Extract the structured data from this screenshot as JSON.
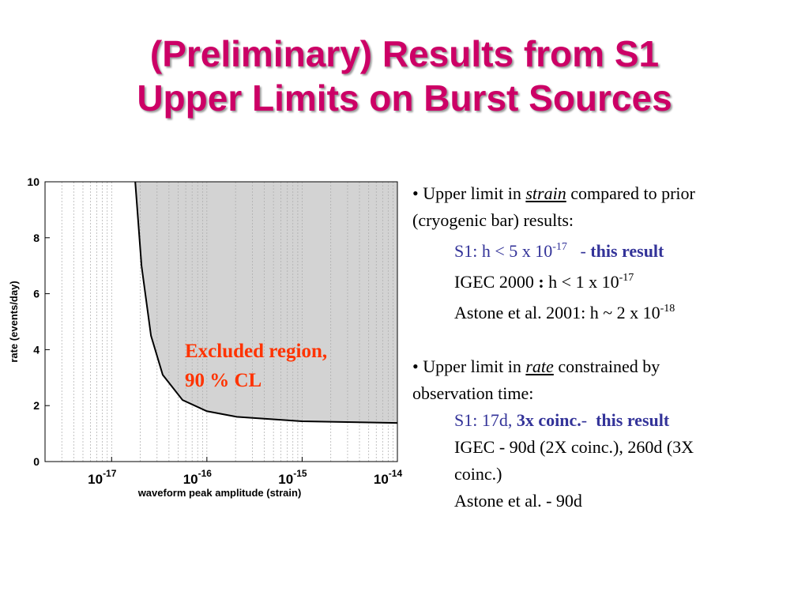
{
  "title_lines": [
    "(Preliminary) Results from S1",
    "Upper Limits on Burst Sources"
  ],
  "chart_data": {
    "type": "area-line",
    "x": [
      1.77e-17,
      2.06e-17,
      2.59e-17,
      3.44e-17,
      5.55e-17,
      1e-16,
      2.06e-16,
      1e-15,
      1e-14
    ],
    "values": [
      10,
      7.0,
      4.5,
      3.1,
      2.2,
      1.8,
      1.6,
      1.44,
      1.38
    ],
    "color": "#000000",
    "fill": "#d3d3d3",
    "x_label": "waveform peak amplitude (strain)",
    "y_label": "rate (events/day)",
    "x_log": true,
    "xlim": [
      2e-18,
      1e-14
    ],
    "ylim": [
      0,
      10
    ],
    "xticks": [
      {
        "value": 1e-17,
        "label": "10",
        "exponent": "-17"
      },
      {
        "value": 1e-16,
        "label": "10",
        "exponent": "-16"
      },
      {
        "value": 1e-15,
        "label": "10",
        "exponent": "-15"
      },
      {
        "value": 1e-14,
        "label": "10",
        "exponent": "-14"
      }
    ],
    "x_minor_ticks": [
      3e-18,
      4e-18,
      5e-18,
      6e-18,
      7e-18,
      8e-18,
      9e-18,
      2e-17,
      3e-17,
      4e-17,
      5e-17,
      6e-17,
      7e-17,
      8e-17,
      9e-17,
      2e-16,
      3e-16,
      4e-16,
      5e-16,
      6e-16,
      7e-16,
      8e-16,
      9e-16,
      2e-15,
      3e-15,
      4e-15,
      5e-15,
      6e-15,
      7e-15,
      8e-15,
      9e-15
    ],
    "yticks": [
      0,
      2,
      4,
      6,
      8,
      10
    ],
    "grid": "x",
    "annotation": [
      "Excluded region,",
      "90 % CL"
    ],
    "annotation_color": "#ff3300"
  },
  "notes": [
    {
      "lines": [
        {
          "indent": false,
          "segments": [
            {
              "text": "• Upper limit in "
            },
            {
              "text": "strain",
              "style": [
                "italic",
                "underline"
              ]
            },
            {
              "text": " compared to prior"
            }
          ]
        },
        {
          "indent": false,
          "segments": [
            {
              "text": "(cryogenic bar) results:"
            }
          ]
        },
        {
          "indent": true,
          "segments": [
            {
              "text": "S1: h < 5 x 10",
              "style": [
                "blue"
              ]
            },
            {
              "text": "-17",
              "style": [
                "blue",
                "sup"
              ]
            },
            {
              "text": "   - ",
              "style": [
                "blue"
              ]
            },
            {
              "text": "this result",
              "style": [
                "blue",
                "bold"
              ]
            }
          ]
        },
        {
          "indent": true,
          "segments": [
            {
              "text": "IGEC 2000 "
            },
            {
              "text": ":",
              "style": [
                "bold"
              ]
            },
            {
              "text": " h < 1 x 10"
            },
            {
              "text": "-17",
              "style": [
                "sup"
              ]
            }
          ]
        },
        {
          "indent": true,
          "segments": [
            {
              "text": "Astone et al. 2001: h ~ 2 x 10"
            },
            {
              "text": "-18",
              "style": [
                "sup"
              ]
            }
          ]
        }
      ]
    },
    {
      "lines": [
        {
          "indent": false,
          "segments": [
            {
              "text": "• Upper limit in "
            },
            {
              "text": "rate",
              "style": [
                "italic",
                "underline"
              ]
            },
            {
              "text": " constrained by"
            }
          ]
        },
        {
          "indent": false,
          "segments": [
            {
              "text": "observation time:"
            }
          ]
        },
        {
          "indent": true,
          "segments": [
            {
              "text": "S1: 17d, ",
              "style": [
                "blue"
              ]
            },
            {
              "text": "3x coinc.",
              "style": [
                "blue",
                "bold"
              ]
            },
            {
              "text": "-  ",
              "style": [
                "blue"
              ]
            },
            {
              "text": "this result",
              "style": [
                "blue",
                "bold"
              ]
            }
          ]
        },
        {
          "indent": true,
          "segments": [
            {
              "text": "IGEC - 90d (2X coinc.), 260d (3X"
            }
          ]
        },
        {
          "indent": true,
          "segments": [
            {
              "text": "coinc.)"
            }
          ]
        },
        {
          "indent": true,
          "segments": [
            {
              "text": "Astone et al. - 90d"
            }
          ]
        }
      ]
    }
  ]
}
